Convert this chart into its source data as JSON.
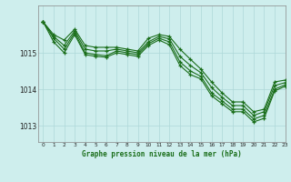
{
  "title": "Graphe pression niveau de la mer (hPa)",
  "bg_color": "#ceeeed",
  "grid_color": "#aed8d8",
  "line_color": "#1a6e1a",
  "xlim": [
    -0.5,
    23
  ],
  "ylim": [
    1012.55,
    1016.3
  ],
  "yticks": [
    1013,
    1014,
    1015
  ],
  "xticks": [
    0,
    1,
    2,
    3,
    4,
    5,
    6,
    7,
    8,
    9,
    10,
    11,
    12,
    13,
    14,
    15,
    16,
    17,
    18,
    19,
    20,
    21,
    22,
    23
  ],
  "series": [
    [
      1015.85,
      1015.5,
      1015.35,
      1015.65,
      1015.2,
      1015.15,
      1015.15,
      1015.15,
      1015.1,
      1015.05,
      1015.4,
      1015.5,
      1015.45,
      1015.1,
      1014.82,
      1014.55,
      1014.2,
      1013.9,
      1013.65,
      1013.65,
      1013.38,
      1013.45,
      1014.2,
      1014.25
    ],
    [
      1015.85,
      1015.45,
      1015.2,
      1015.6,
      1015.1,
      1015.05,
      1015.05,
      1015.1,
      1015.05,
      1015.0,
      1015.3,
      1015.45,
      1015.38,
      1014.9,
      1014.65,
      1014.45,
      1014.05,
      1013.78,
      1013.55,
      1013.55,
      1013.28,
      1013.38,
      1014.1,
      1014.18
    ],
    [
      1015.85,
      1015.4,
      1015.1,
      1015.55,
      1015.0,
      1014.95,
      1014.92,
      1015.05,
      1015.0,
      1014.95,
      1015.25,
      1015.4,
      1015.3,
      1014.75,
      1014.5,
      1014.35,
      1013.9,
      1013.68,
      1013.45,
      1013.45,
      1013.18,
      1013.28,
      1014.0,
      1014.12
    ],
    [
      1015.85,
      1015.3,
      1015.0,
      1015.5,
      1014.95,
      1014.9,
      1014.88,
      1015.0,
      1014.95,
      1014.9,
      1015.2,
      1015.35,
      1015.22,
      1014.65,
      1014.4,
      1014.28,
      1013.82,
      1013.6,
      1013.38,
      1013.38,
      1013.1,
      1013.2,
      1013.95,
      1014.08
    ]
  ]
}
